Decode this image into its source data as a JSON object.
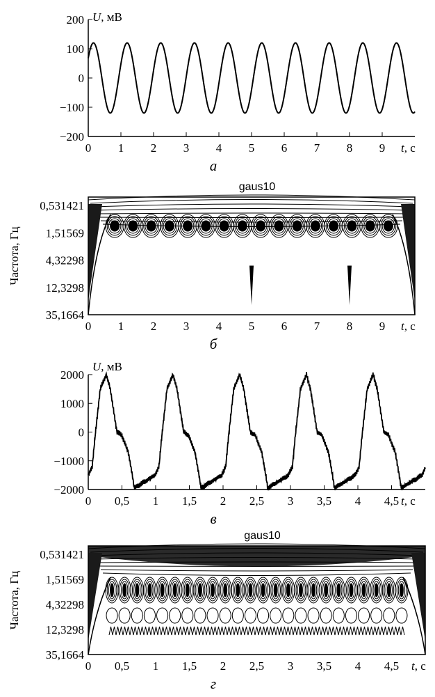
{
  "chart_data": [
    {
      "type": "line",
      "caption": "а",
      "ylabel_symbol": "U",
      "ylabel_unit": ", мВ",
      "xlabel_symbol": "t",
      "xlabel_unit": ", с",
      "xlim": [
        0,
        10
      ],
      "ylim": [
        -200,
        200
      ],
      "x_ticks": [
        0,
        1,
        2,
        3,
        4,
        5,
        6,
        7,
        8,
        9
      ],
      "y_ticks": [
        "200",
        "100",
        "0",
        "−100",
        "−200"
      ],
      "y_tick_values": [
        200,
        100,
        0,
        -100,
        -200
      ],
      "signal": {
        "amplitude": 120,
        "frequency": 0.97,
        "phase": 0.6,
        "t_end": 10
      }
    },
    {
      "type": "heatmap",
      "title": "gaus10",
      "caption": "б",
      "ylabel": "Частота, Гц",
      "xlabel_symbol": "t",
      "xlabel_unit": ", с",
      "xlim": [
        0,
        10
      ],
      "x_ticks": [
        0,
        1,
        2,
        3,
        4,
        5,
        6,
        7,
        8,
        9
      ],
      "y_ticks": [
        "0,531421",
        "1,51569",
        "4,32298",
        "12,3298",
        "35,1664"
      ],
      "cells_count": 16,
      "spikes": [
        5,
        8
      ]
    },
    {
      "type": "line",
      "caption": "в",
      "ylabel_symbol": "U",
      "ylabel_unit": ", мВ",
      "xlabel_symbol": "t",
      "xlabel_unit": ", с",
      "xlim": [
        0,
        5
      ],
      "ylim": [
        -2000,
        2000
      ],
      "x_ticks": [
        "0",
        "0,5",
        "1",
        "1,5",
        "2",
        "2,5",
        "3",
        "3,5",
        "4",
        "4,5"
      ],
      "x_tick_values": [
        0,
        0.5,
        1,
        1.5,
        2,
        2.5,
        3,
        3.5,
        4,
        4.5
      ],
      "y_ticks": [
        "2000",
        "1000",
        "0",
        "−1000",
        "−2000"
      ],
      "y_tick_values": [
        2000,
        1000,
        0,
        -1000,
        -2000
      ],
      "period": 0.99,
      "waveform": {
        "phase_x": [
          0,
          0.06,
          0.1,
          0.18,
          0.27,
          0.33,
          0.43,
          0.5,
          0.6,
          0.66,
          0.69,
          1
        ],
        "value_y": [
          -1500,
          -1200,
          -200,
          1500,
          2000,
          1500,
          0,
          -100,
          -700,
          -1500,
          -1950,
          -1500
        ]
      }
    },
    {
      "type": "heatmap",
      "title": "gaus10",
      "caption": "г",
      "ylabel": "Частота, Гц",
      "xlabel_symbol": "t",
      "xlabel_unit": ", с",
      "xlim": [
        0,
        5
      ],
      "x_ticks": [
        "0",
        "0,5",
        "1",
        "1,5",
        "2",
        "2,5",
        "3",
        "3,5",
        "4",
        "4,5"
      ],
      "x_tick_values": [
        0,
        0.5,
        1,
        1.5,
        2,
        2.5,
        3,
        3.5,
        4,
        4.5
      ],
      "y_ticks": [
        "0,531421",
        "1,51569",
        "4,32298",
        "12,3298",
        "35,1664"
      ],
      "cells_count": 24
    }
  ]
}
